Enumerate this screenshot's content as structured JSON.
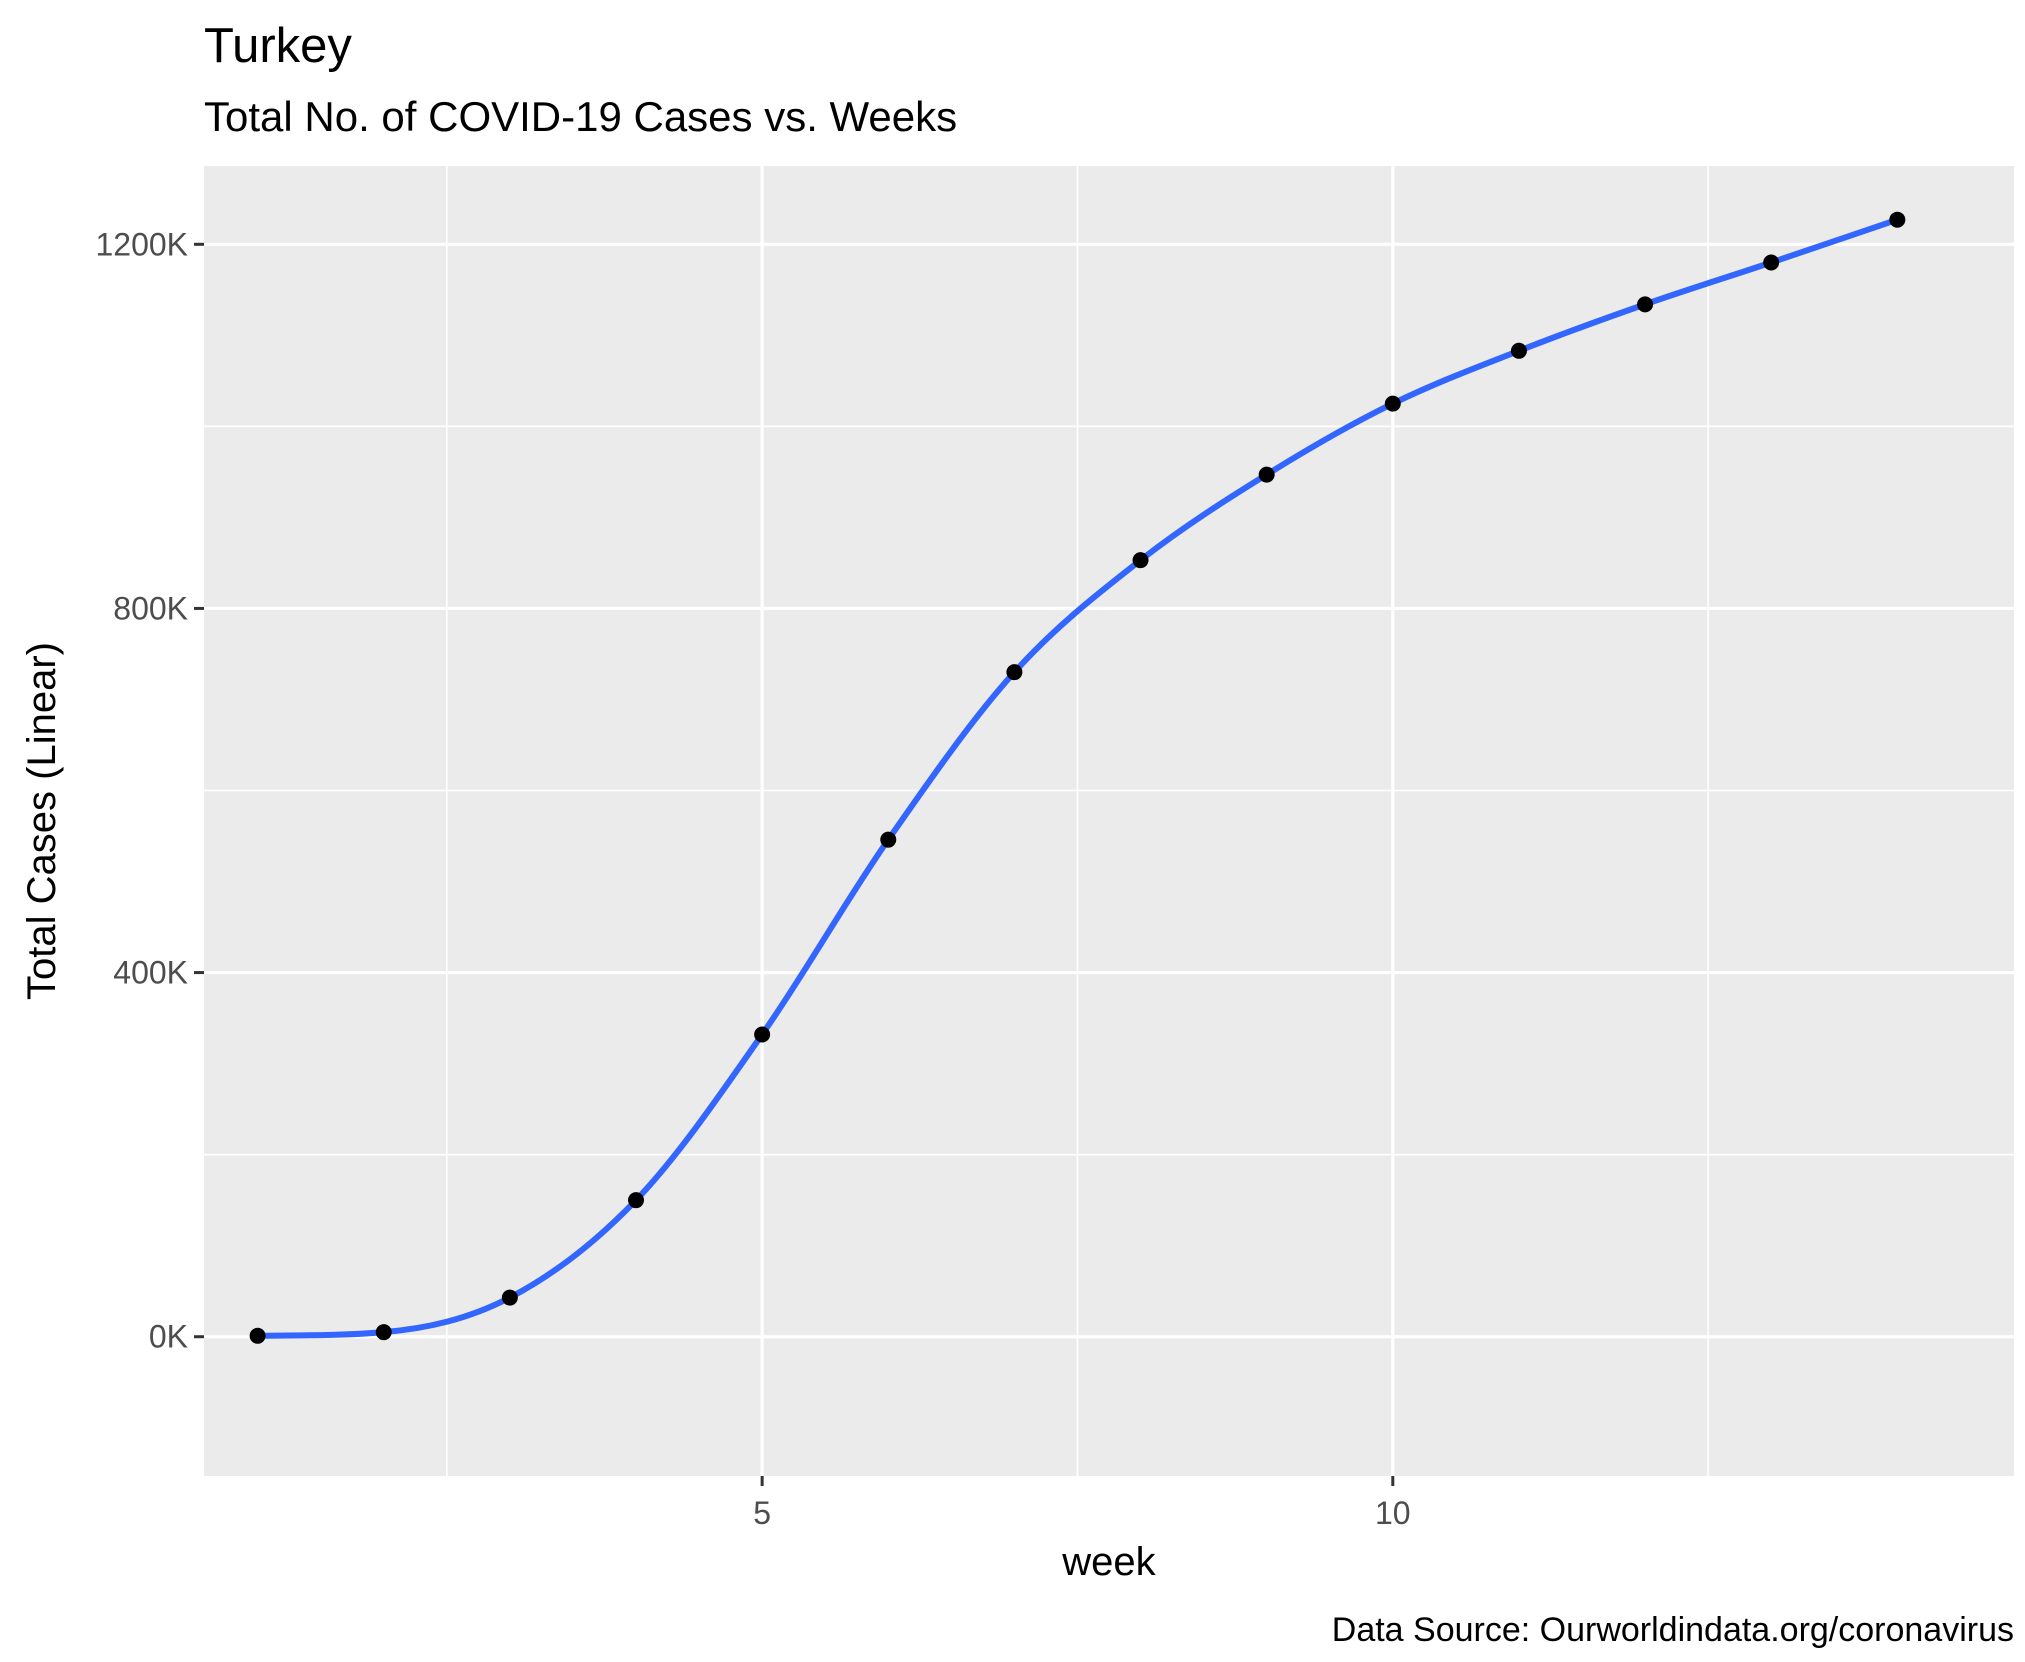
{
  "chart_data": {
    "type": "scatter",
    "title": "Turkey",
    "subtitle": "Total No. of COVID-19 Cases vs. Weeks",
    "xlabel": "week",
    "ylabel": "Total Cases (Linear)",
    "caption": "Data Source: Ourworldindata.org/coronavirus",
    "xlim": [
      0.575,
      14.925
    ],
    "ylim": [
      -153000,
      1286000
    ],
    "x_ticks": [
      5,
      10
    ],
    "x_tick_labels": [
      "5",
      "10"
    ],
    "x_minor_ticks": [
      2.5,
      7.5,
      12.5
    ],
    "y_ticks": [
      0,
      400000,
      800000,
      1200000
    ],
    "y_tick_labels": [
      "0K",
      "400K",
      "800K",
      "1200K"
    ],
    "y_minor_ticks": [
      200000,
      600000,
      1000000
    ],
    "grid": true,
    "legend": "none",
    "series": [
      {
        "points_color": "#000000",
        "smooth_color": "#3366FF",
        "x": [
          1,
          2,
          3,
          4,
          5,
          6,
          7,
          8,
          9,
          10,
          11,
          12,
          13,
          14
        ],
        "y": [
          1000,
          5000,
          43000,
          150000,
          332000,
          546000,
          730000,
          853000,
          947000,
          1025000,
          1083000,
          1134000,
          1180000,
          1227000
        ]
      }
    ]
  }
}
